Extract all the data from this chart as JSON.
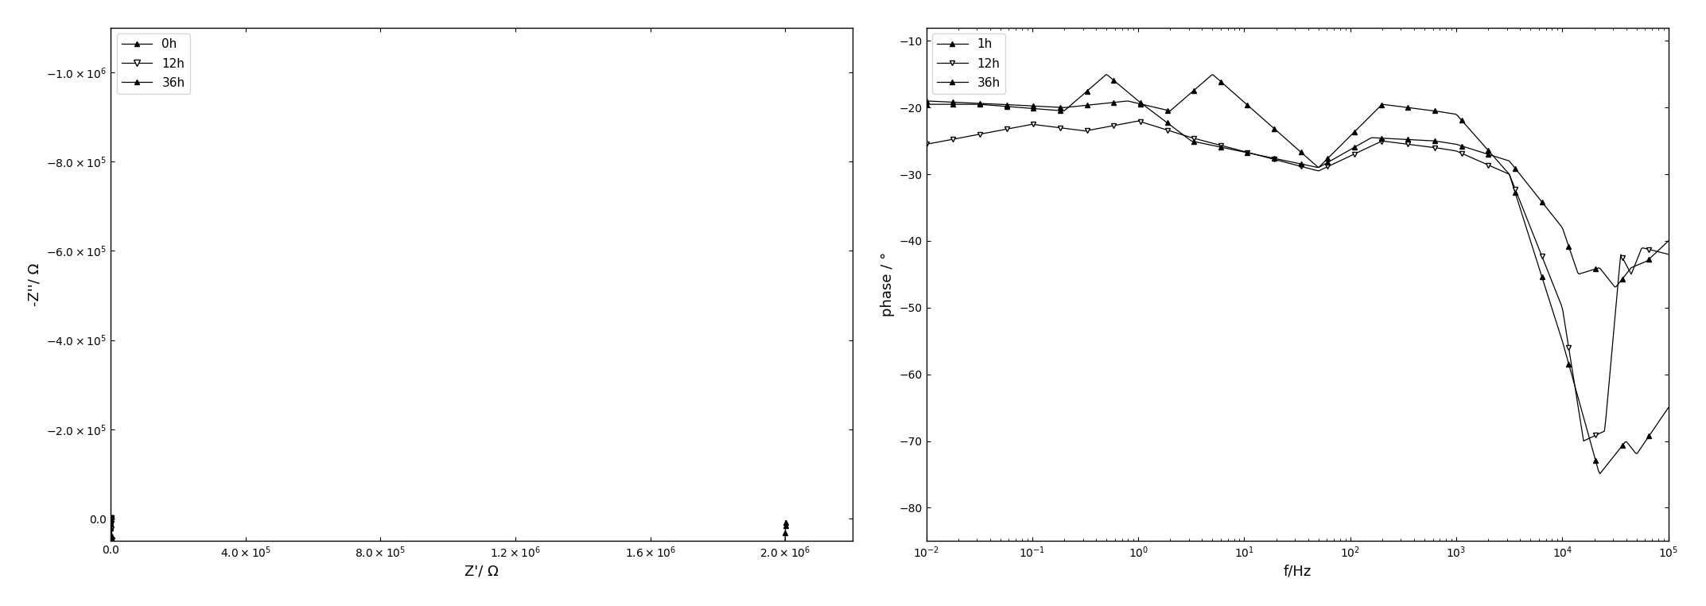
{
  "left_xlabel": "Z'/ Ω",
  "left_ylabel": "-Z''/ Ω",
  "left_xlim": [
    0,
    2200000.0
  ],
  "left_ylim": [
    -1100000.0,
    50000.0
  ],
  "left_xticks": [
    0,
    400000.0,
    800000.0,
    1200000.0,
    1600000.0,
    2000000.0
  ],
  "left_yticks": [
    0,
    -200000.0,
    -400000.0,
    -600000.0,
    -800000.0,
    -1000000.0
  ],
  "right_xlabel": "f/Hz",
  "right_ylabel": "phase / °",
  "right_xlim": [
    0.01,
    100000.0
  ],
  "right_ylim": [
    -85,
    -8
  ],
  "right_yticks": [
    -80,
    -70,
    -60,
    -50,
    -40,
    -30,
    -20,
    -10
  ],
  "background_color": "#ffffff"
}
